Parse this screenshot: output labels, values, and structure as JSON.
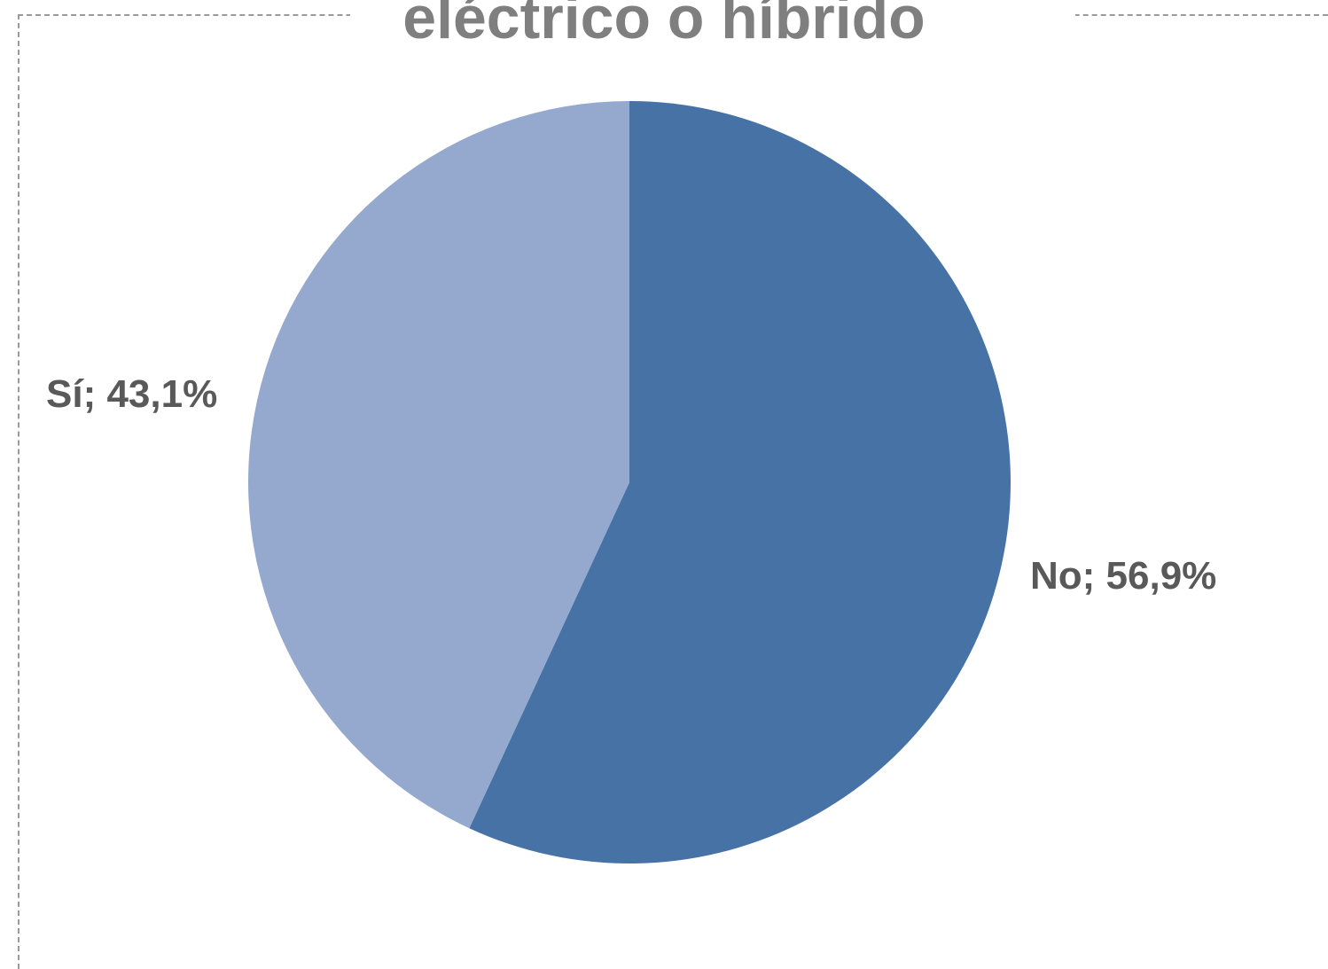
{
  "chart_data": {
    "type": "pie",
    "title": "eléctrico o híbrido",
    "slices": [
      {
        "label": "Sí",
        "value": 43.1,
        "display": "Sí; 43,1%",
        "color": "#95a9cf"
      },
      {
        "label": "No",
        "value": 56.9,
        "display": "No; 56,9%",
        "color": "#4672a6"
      }
    ],
    "start_angle_deg": 0,
    "direction": "clockwise",
    "first_slice": "No",
    "legend": "none"
  }
}
